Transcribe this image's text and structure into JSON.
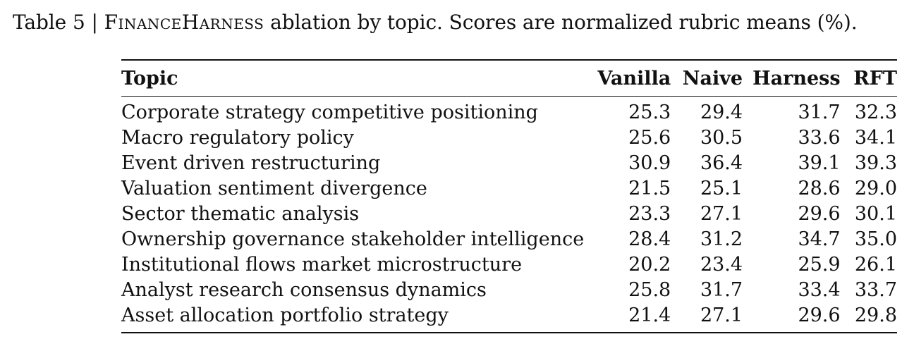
{
  "caption": {
    "label": "Table 5 | ",
    "name": "FinanceHarness",
    "text": " ablation by topic. Scores are normalized rubric means (%)."
  },
  "table": {
    "headers": [
      "Topic",
      "Vanilla",
      "Naive",
      "Harness",
      "RFT"
    ],
    "rows": [
      [
        "Corporate strategy competitive positioning",
        "25.3",
        "29.4",
        "31.7",
        "32.3"
      ],
      [
        "Macro regulatory policy",
        "25.6",
        "30.5",
        "33.6",
        "34.1"
      ],
      [
        "Event driven restructuring",
        "30.9",
        "36.4",
        "39.1",
        "39.3"
      ],
      [
        "Valuation sentiment divergence",
        "21.5",
        "25.1",
        "28.6",
        "29.0"
      ],
      [
        "Sector thematic analysis",
        "23.3",
        "27.1",
        "29.6",
        "30.1"
      ],
      [
        "Ownership governance stakeholder intelligence",
        "28.4",
        "31.2",
        "34.7",
        "35.0"
      ],
      [
        "Institutional flows market microstructure",
        "20.2",
        "23.4",
        "25.9",
        "26.1"
      ],
      [
        "Analyst research consensus dynamics",
        "25.8",
        "31.7",
        "33.4",
        "33.7"
      ],
      [
        "Asset allocation portfolio strategy",
        "21.4",
        "27.1",
        "29.6",
        "29.8"
      ]
    ]
  }
}
